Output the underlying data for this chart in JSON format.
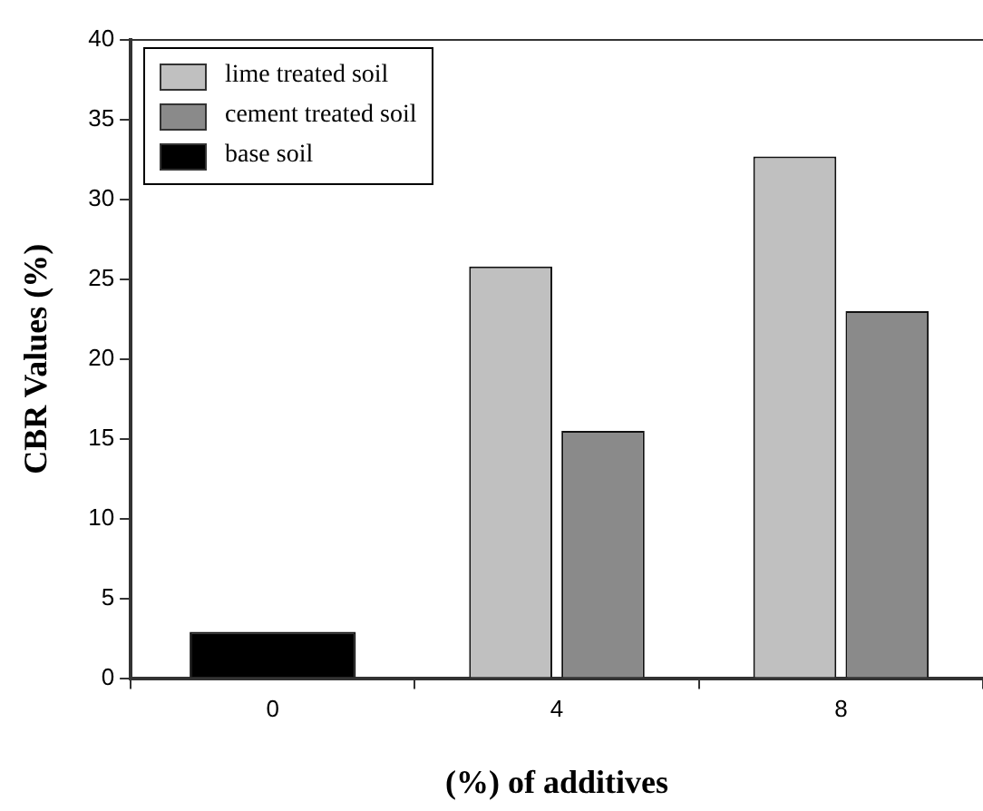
{
  "chart_data": {
    "type": "bar",
    "xlabel": "(%) of additives",
    "ylabel": "CBR Values (%)",
    "categories": [
      "0",
      "4",
      "8"
    ],
    "series": [
      {
        "name": "lime treated soil",
        "color": "#c0c0c0",
        "values": [
          null,
          25.8,
          32.7
        ]
      },
      {
        "name": "cement treated soil",
        "color": "#8a8a8a",
        "values": [
          null,
          15.5,
          23.0
        ]
      },
      {
        "name": "base soil",
        "color": "#000000",
        "values": [
          2.9,
          null,
          null
        ]
      }
    ],
    "ylim": [
      0,
      40
    ],
    "yticks": [
      0,
      5,
      10,
      15,
      20,
      25,
      30,
      35,
      40
    ],
    "grid": false,
    "legend": "top left"
  }
}
